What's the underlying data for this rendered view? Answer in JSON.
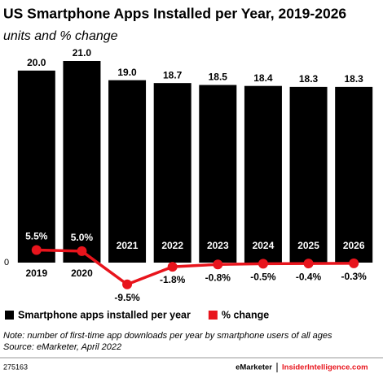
{
  "chart_data": {
    "type": "bar",
    "title": "US Smartphone Apps Installed per Year, 2019-2026",
    "subtitle": "units and % change",
    "categories": [
      "2019",
      "2020",
      "2021",
      "2022",
      "2023",
      "2024",
      "2025",
      "2026"
    ],
    "series": [
      {
        "name": "Smartphone apps installed per year",
        "color": "#000000",
        "values": [
          20.0,
          21.0,
          19.0,
          18.7,
          18.5,
          18.4,
          18.3,
          18.3
        ],
        "value_labels": [
          "20.0",
          "21.0",
          "19.0",
          "18.7",
          "18.5",
          "18.4",
          "18.3",
          "18.3"
        ]
      },
      {
        "name": "% change",
        "color": "#e8141c",
        "type": "line",
        "axis": "y2",
        "values": [
          5.5,
          5.0,
          -9.5,
          -1.8,
          -0.8,
          -0.5,
          -0.4,
          -0.3
        ],
        "value_labels": [
          "5.5%",
          "5.0%",
          "-9.5%",
          "-1.8%",
          "-0.8%",
          "-0.5%",
          "-0.4%",
          "-0.3%"
        ]
      }
    ],
    "ylim": [
      0,
      21
    ],
    "yticks": [
      0
    ],
    "y2lim": [
      0,
      88
    ],
    "legend": "bottom",
    "notes": [
      "Note: number of first-time app downloads per year by smartphone users of all ages",
      "Source: eMarketer, April 2022"
    ],
    "footer": {
      "id": "275163",
      "brand": "eMarketer",
      "site": "InsiderIntelligence.com"
    }
  }
}
